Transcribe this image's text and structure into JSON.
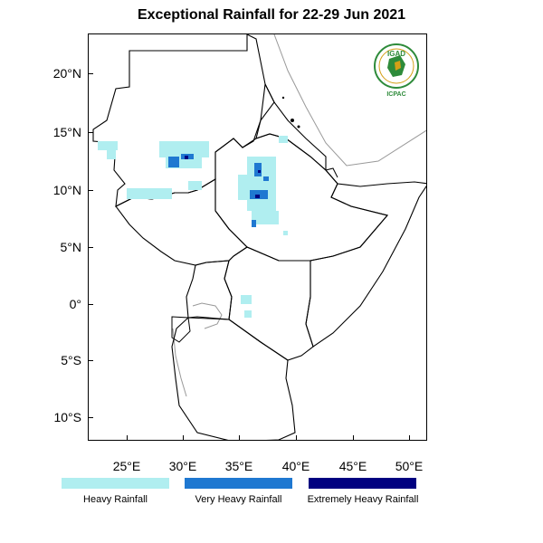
{
  "title": "Exceptional Rainfall for 22-29 Jun 2021",
  "logo": {
    "top_text": "IGAD",
    "bottom_text": "ICPAC",
    "colors": {
      "green": "#2e8b3a",
      "gold": "#d4a017"
    }
  },
  "axes": {
    "y_ticks": [
      {
        "label": "20°N",
        "lat": 20
      },
      {
        "label": "15°N",
        "lat": 15
      },
      {
        "label": "10°N",
        "lat": 10
      },
      {
        "label": "5°N",
        "lat": 5
      },
      {
        "label": "0°",
        "lat": 0
      },
      {
        "label": "5°S",
        "lat": -5
      },
      {
        "label": "10°S",
        "lat": -10
      }
    ],
    "x_ticks": [
      {
        "label": "25°E",
        "lon": 25
      },
      {
        "label": "30°E",
        "lon": 30
      },
      {
        "label": "35°E",
        "lon": 35
      },
      {
        "label": "40°E",
        "lon": 40
      },
      {
        "label": "45°E",
        "lon": 45
      },
      {
        "label": "50°E",
        "lon": 50
      }
    ],
    "lon_range": [
      21.8,
      51.8
    ],
    "lat_range": [
      -12,
      24
    ]
  },
  "legend": [
    {
      "label": "Heavy Rainfall",
      "color": "#b0eef0"
    },
    {
      "label": "Very Heavy Rainfall",
      "color": "#1f78d1"
    },
    {
      "label": "Extremely Heavy Rainfall",
      "color": "#000080"
    }
  ]
}
